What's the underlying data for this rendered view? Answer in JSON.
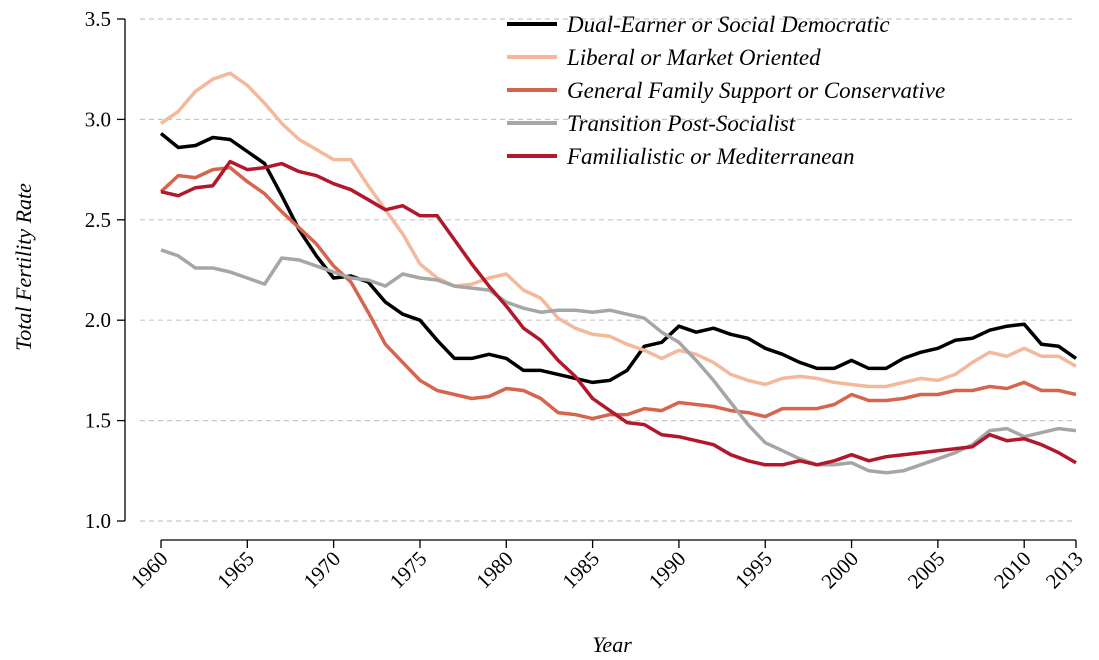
{
  "chart_data": {
    "type": "line",
    "xlabel": "Year",
    "ylabel": "Total Fertility Rate",
    "x": [
      1960,
      1961,
      1962,
      1963,
      1964,
      1965,
      1966,
      1967,
      1968,
      1969,
      1970,
      1971,
      1972,
      1973,
      1974,
      1975,
      1976,
      1977,
      1978,
      1979,
      1980,
      1981,
      1982,
      1983,
      1984,
      1985,
      1986,
      1987,
      1988,
      1989,
      1990,
      1991,
      1992,
      1993,
      1994,
      1995,
      1996,
      1997,
      1998,
      1999,
      2000,
      2001,
      2002,
      2003,
      2004,
      2005,
      2006,
      2007,
      2008,
      2009,
      2010,
      2011,
      2012,
      2013
    ],
    "xlim": [
      1960,
      2013
    ],
    "xticks": [
      1960,
      1965,
      1970,
      1975,
      1980,
      1985,
      1990,
      1995,
      2000,
      2005,
      2010,
      2013
    ],
    "ylim": [
      1,
      3.5
    ],
    "yticks": [
      {
        "value": 1,
        "label": "1.0"
      },
      1.5,
      {
        "value": 2,
        "label": "2.0"
      },
      2.5,
      {
        "value": 3,
        "label": "3.0"
      },
      3.5
    ],
    "grid": true,
    "legend": "top-right",
    "series": [
      {
        "name": "Dual-Earner or Social Democratic",
        "color": "#000000",
        "values": [
          2.93,
          2.86,
          2.87,
          2.91,
          2.9,
          2.84,
          2.78,
          2.62,
          2.45,
          2.32,
          2.21,
          2.22,
          2.19,
          2.09,
          2.03,
          2.0,
          1.9,
          1.81,
          1.81,
          1.83,
          1.81,
          1.75,
          1.75,
          1.73,
          1.71,
          1.69,
          1.7,
          1.75,
          1.87,
          1.89,
          1.97,
          1.94,
          1.96,
          1.93,
          1.91,
          1.86,
          1.83,
          1.79,
          1.76,
          1.76,
          1.8,
          1.76,
          1.76,
          1.81,
          1.84,
          1.86,
          1.9,
          1.91,
          1.95,
          1.97,
          1.98,
          1.88,
          1.87,
          1.81
        ]
      },
      {
        "name": "Liberal or Market Oriented",
        "color": "#f4b89a",
        "values": [
          2.98,
          3.04,
          3.14,
          3.2,
          3.23,
          3.17,
          3.08,
          2.98,
          2.9,
          2.85,
          2.8,
          2.8,
          2.67,
          2.55,
          2.43,
          2.28,
          2.21,
          2.17,
          2.18,
          2.21,
          2.23,
          2.15,
          2.11,
          2.01,
          1.96,
          1.93,
          1.92,
          1.88,
          1.85,
          1.81,
          1.85,
          1.83,
          1.79,
          1.73,
          1.7,
          1.68,
          1.71,
          1.72,
          1.71,
          1.69,
          1.68,
          1.67,
          1.67,
          1.69,
          1.71,
          1.7,
          1.73,
          1.79,
          1.84,
          1.82,
          1.86,
          1.82,
          1.82,
          1.77
        ]
      },
      {
        "name": "General Family Support or Conservative",
        "color": "#d6654f",
        "values": [
          2.64,
          2.72,
          2.71,
          2.75,
          2.76,
          2.69,
          2.63,
          2.54,
          2.46,
          2.38,
          2.27,
          2.19,
          2.04,
          1.88,
          1.79,
          1.7,
          1.65,
          1.63,
          1.61,
          1.62,
          1.66,
          1.65,
          1.61,
          1.54,
          1.53,
          1.51,
          1.53,
          1.53,
          1.56,
          1.55,
          1.59,
          1.58,
          1.57,
          1.55,
          1.54,
          1.52,
          1.56,
          1.56,
          1.56,
          1.58,
          1.63,
          1.6,
          1.6,
          1.61,
          1.63,
          1.63,
          1.65,
          1.65,
          1.67,
          1.66,
          1.69,
          1.65,
          1.65,
          1.63
        ]
      },
      {
        "name": "Transition Post-Socialist",
        "color": "#a6a6a6",
        "values": [
          2.35,
          2.32,
          2.26,
          2.26,
          2.24,
          2.21,
          2.18,
          2.31,
          2.3,
          2.27,
          2.24,
          2.21,
          2.2,
          2.17,
          2.23,
          2.21,
          2.2,
          2.17,
          2.16,
          2.15,
          2.09,
          2.06,
          2.04,
          2.05,
          2.05,
          2.04,
          2.05,
          2.03,
          2.01,
          1.94,
          1.89,
          1.8,
          1.7,
          1.59,
          1.48,
          1.39,
          1.35,
          1.31,
          1.28,
          1.28,
          1.29,
          1.25,
          1.24,
          1.25,
          1.28,
          1.31,
          1.34,
          1.38,
          1.45,
          1.46,
          1.42,
          1.44,
          1.46,
          1.45
        ]
      },
      {
        "name": "Familialistic or Mediterranean",
        "color": "#b2182b",
        "values": [
          2.64,
          2.62,
          2.66,
          2.67,
          2.79,
          2.75,
          2.76,
          2.78,
          2.74,
          2.72,
          2.68,
          2.65,
          2.6,
          2.55,
          2.57,
          2.52,
          2.52,
          2.4,
          2.28,
          2.17,
          2.07,
          1.96,
          1.9,
          1.8,
          1.72,
          1.61,
          1.55,
          1.49,
          1.48,
          1.43,
          1.42,
          1.4,
          1.38,
          1.33,
          1.3,
          1.28,
          1.28,
          1.3,
          1.28,
          1.3,
          1.33,
          1.3,
          1.32,
          1.33,
          1.34,
          1.35,
          1.36,
          1.37,
          1.43,
          1.4,
          1.41,
          1.38,
          1.34,
          1.29
        ]
      }
    ]
  }
}
